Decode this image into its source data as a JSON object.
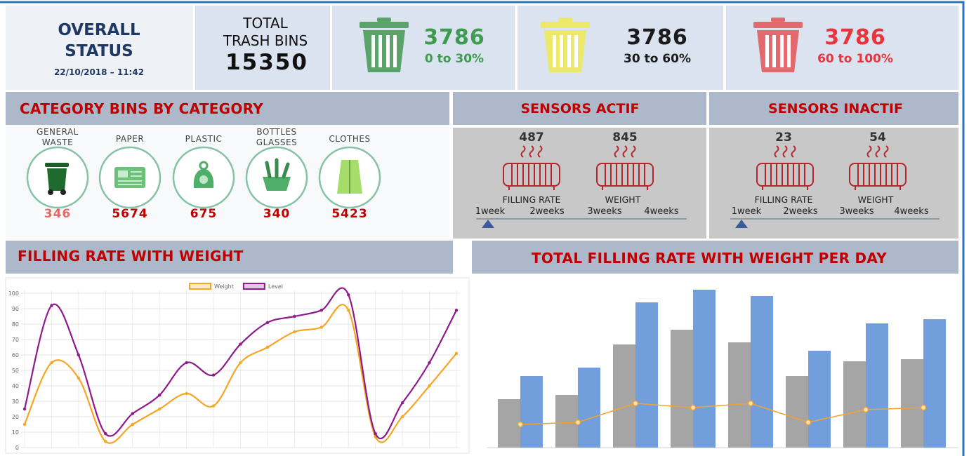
{
  "header": {
    "title": [
      "OVERALL",
      "STATUS"
    ],
    "datetime": "22/10/2018 – 11:42",
    "total_label": [
      "TOTAL",
      "TRASH BINS"
    ],
    "total_value": 15350
  },
  "fill_levels": [
    {
      "count": 3786,
      "range": "0 to 30%",
      "color": "#3e9b50"
    },
    {
      "count": 3786,
      "range": "30 to 60%",
      "color": "#1b1b1b"
    },
    {
      "count": 3786,
      "range": "60 to 100%",
      "color": "#e8343c"
    }
  ],
  "categories_panel": {
    "title": "CATEGORY BINS BY CATEGORY",
    "items": [
      {
        "label": [
          "GENERAL",
          "WASTE"
        ],
        "count": 346,
        "color": "#e06a6a"
      },
      {
        "label": [
          "PAPER"
        ],
        "count": 5674,
        "color": "#c00000"
      },
      {
        "label": [
          "PLASTIC"
        ],
        "count": 675,
        "color": "#c00000"
      },
      {
        "label": [
          "BOTTLES",
          "GLASSES"
        ],
        "count": 340,
        "color": "#c00000"
      },
      {
        "label": [
          "CLOTHES"
        ],
        "count": 5423,
        "color": "#c00000"
      }
    ]
  },
  "sensors": [
    {
      "title": "SENSORS ACTIF",
      "filling_rate": 487,
      "filling_rate_label": "FILLING RATE",
      "weight": 845,
      "weight_label": "WEIGHT",
      "periods": [
        "1week",
        "2weeks",
        "3weeks",
        "4weeks"
      ]
    },
    {
      "title": "SENSORS INACTIF",
      "filling_rate": 23,
      "filling_rate_label": "FILLING RATE",
      "weight": 54,
      "weight_label": "WEIGHT",
      "periods": [
        "1week",
        "2weeks",
        "3weeks",
        "4weeks"
      ]
    }
  ],
  "chart_data": [
    {
      "type": "line",
      "title": "FILLING RATE WITH WEIGHT",
      "categories": [
        null,
        null,
        null,
        null,
        null,
        null,
        null,
        null,
        null,
        null,
        null,
        null,
        null,
        null,
        null,
        null,
        null
      ],
      "series": [
        {
          "name": "Weight",
          "color": "#f5a623",
          "values": [
            15,
            55,
            45,
            4,
            15,
            25,
            35,
            27,
            55,
            65,
            75,
            78,
            89,
            7,
            20,
            40,
            61
          ]
        },
        {
          "name": "Level",
          "color": "#8e1b8b",
          "values": [
            25,
            92,
            60,
            9,
            22,
            34,
            55,
            47,
            67,
            81,
            85,
            89,
            99,
            9,
            29,
            55,
            89
          ]
        }
      ],
      "ylim": [
        0,
        100
      ],
      "yticks": [
        0,
        10,
        20,
        30,
        40,
        50,
        60,
        70,
        80,
        90,
        100
      ],
      "grid": true,
      "legend": "top"
    },
    {
      "type": "bar",
      "title": "TOTAL FILLING RATE WITH WEIGHT PER DAY",
      "categories": [
        null,
        null,
        null,
        null,
        null,
        null,
        null,
        null
      ],
      "series": [
        {
          "color": "#a5a5a5",
          "values": [
            23,
            25,
            49,
            56,
            50,
            34,
            41,
            42
          ]
        },
        {
          "color": "#729fdc",
          "values": [
            34,
            38,
            69,
            75,
            72,
            46,
            59,
            61
          ]
        },
        {
          "type": "line",
          "color": "#f4a22d",
          "values": [
            11,
            12,
            21,
            19,
            21,
            12,
            18,
            19
          ]
        }
      ],
      "ylim": [
        0,
        80
      ]
    }
  ]
}
